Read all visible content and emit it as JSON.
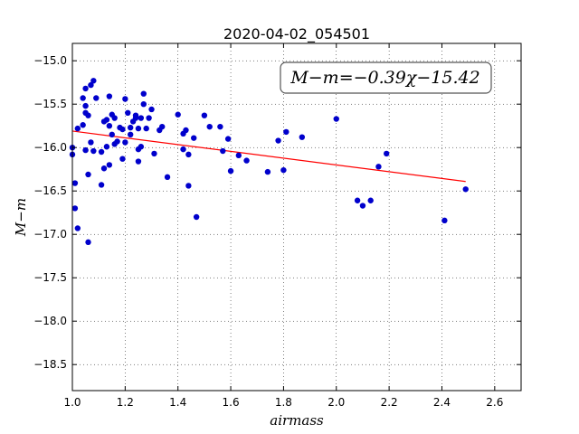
{
  "chart_data": {
    "type": "scatter",
    "title": "2020-04-02_054501",
    "xlabel": "airmass",
    "ylabel": "M−m",
    "xlim": [
      1.0,
      2.7
    ],
    "ylim": [
      -18.8,
      -14.8
    ],
    "y_inverted": true,
    "grid": true,
    "xticks": [
      "1.0",
      "1.2",
      "1.4",
      "1.6",
      "1.8",
      "2.0",
      "2.2",
      "2.4",
      "2.6"
    ],
    "yticks": [
      "−15.0",
      "−15.5",
      "−16.0",
      "−16.5",
      "−17.0",
      "−17.5",
      "−18.0",
      "−18.5"
    ],
    "annotation": "M−m=−0.39χ−15.42",
    "colors": {
      "points": "#0000cc",
      "fit_line": "#ff0000"
    },
    "fit": {
      "slope": -0.39,
      "intercept": -15.42,
      "x_range": [
        1.0,
        2.49
      ]
    },
    "points": [
      [
        1.0,
        -16.0
      ],
      [
        1.0,
        -16.08
      ],
      [
        1.01,
        -16.7
      ],
      [
        1.01,
        -16.41
      ],
      [
        1.02,
        -16.93
      ],
      [
        1.02,
        -15.78
      ],
      [
        1.04,
        -15.43
      ],
      [
        1.04,
        -15.74
      ],
      [
        1.05,
        -15.52
      ],
      [
        1.05,
        -15.6
      ],
      [
        1.05,
        -15.32
      ],
      [
        1.05,
        -16.03
      ],
      [
        1.06,
        -15.63
      ],
      [
        1.06,
        -17.09
      ],
      [
        1.06,
        -16.31
      ],
      [
        1.07,
        -15.94
      ],
      [
        1.07,
        -15.28
      ],
      [
        1.08,
        -15.23
      ],
      [
        1.08,
        -16.04
      ],
      [
        1.09,
        -15.43
      ],
      [
        1.11,
        -16.05
      ],
      [
        1.11,
        -16.43
      ],
      [
        1.12,
        -15.7
      ],
      [
        1.12,
        -16.24
      ],
      [
        1.13,
        -15.68
      ],
      [
        1.13,
        -15.99
      ],
      [
        1.14,
        -16.2
      ],
      [
        1.14,
        -15.75
      ],
      [
        1.14,
        -15.41
      ],
      [
        1.15,
        -15.62
      ],
      [
        1.15,
        -15.85
      ],
      [
        1.16,
        -15.66
      ],
      [
        1.16,
        -15.96
      ],
      [
        1.17,
        -15.93
      ],
      [
        1.18,
        -15.77
      ],
      [
        1.19,
        -15.79
      ],
      [
        1.19,
        -16.13
      ],
      [
        1.2,
        -15.44
      ],
      [
        1.2,
        -15.94
      ],
      [
        1.21,
        -15.6
      ],
      [
        1.22,
        -15.77
      ],
      [
        1.22,
        -15.85
      ],
      [
        1.23,
        -15.7
      ],
      [
        1.24,
        -15.66
      ],
      [
        1.24,
        -15.63
      ],
      [
        1.25,
        -16.02
      ],
      [
        1.25,
        -16.16
      ],
      [
        1.25,
        -15.78
      ],
      [
        1.26,
        -15.66
      ],
      [
        1.26,
        -15.99
      ],
      [
        1.27,
        -15.38
      ],
      [
        1.27,
        -15.5
      ],
      [
        1.28,
        -15.78
      ],
      [
        1.29,
        -15.66
      ],
      [
        1.3,
        -15.56
      ],
      [
        1.31,
        -16.07
      ],
      [
        1.33,
        -15.8
      ],
      [
        1.34,
        -15.76
      ],
      [
        1.36,
        -16.34
      ],
      [
        1.4,
        -15.62
      ],
      [
        1.42,
        -15.84
      ],
      [
        1.42,
        -16.02
      ],
      [
        1.43,
        -15.8
      ],
      [
        1.44,
        -16.44
      ],
      [
        1.44,
        -16.08
      ],
      [
        1.46,
        -15.89
      ],
      [
        1.47,
        -16.8
      ],
      [
        1.5,
        -15.63
      ],
      [
        1.52,
        -15.76
      ],
      [
        1.56,
        -15.76
      ],
      [
        1.57,
        -16.04
      ],
      [
        1.59,
        -15.9
      ],
      [
        1.6,
        -16.27
      ],
      [
        1.63,
        -16.09
      ],
      [
        1.66,
        -16.15
      ],
      [
        1.74,
        -16.28
      ],
      [
        1.78,
        -15.92
      ],
      [
        1.8,
        -16.26
      ],
      [
        1.81,
        -15.82
      ],
      [
        1.87,
        -15.88
      ],
      [
        2.0,
        -15.67
      ],
      [
        2.16,
        -16.22
      ],
      [
        2.19,
        -16.07
      ],
      [
        2.08,
        -16.61
      ],
      [
        2.1,
        -16.67
      ],
      [
        2.13,
        -16.61
      ],
      [
        2.41,
        -16.84
      ],
      [
        2.49,
        -16.48
      ]
    ]
  }
}
